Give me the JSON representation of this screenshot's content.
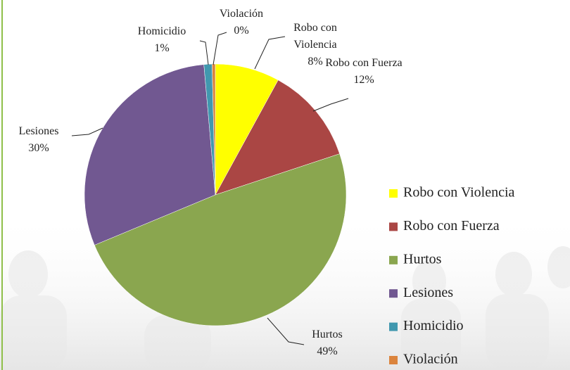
{
  "chart_data": {
    "type": "pie",
    "categories": [
      "Robo con Violencia",
      "Robo con Fuerza",
      "Hurtos",
      "Lesiones",
      "Homicidio",
      "Violación"
    ],
    "values": [
      8,
      12,
      49,
      30,
      1,
      0.4
    ],
    "value_labels": [
      "8%",
      "12%",
      "49%",
      "30%",
      "1%",
      "0%"
    ],
    "colors": [
      "#ffff00",
      "#aa4644",
      "#8aa64f",
      "#715891",
      "#4198af",
      "#db843d"
    ],
    "legend": "right"
  }
}
